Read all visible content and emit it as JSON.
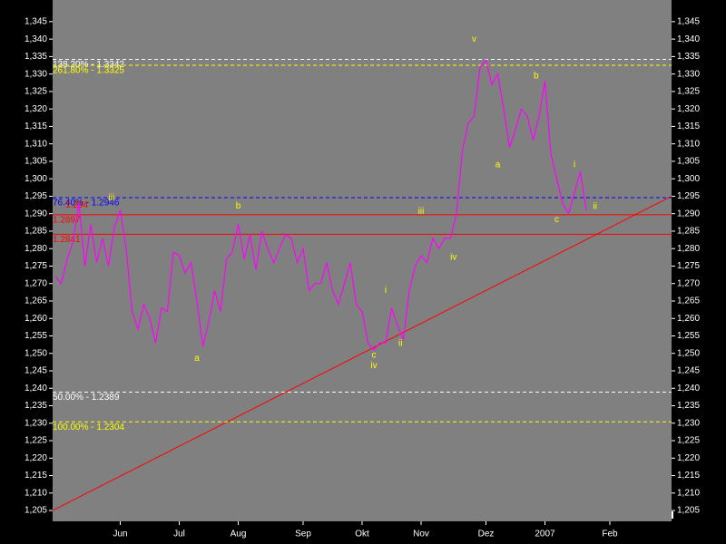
{
  "chart_data": {
    "type": "line",
    "color": "#ff00ff",
    "background": "#808080",
    "categories": [
      null,
      null,
      null,
      null,
      null,
      null,
      null,
      null,
      null,
      null,
      null,
      "Jun",
      null,
      null,
      null,
      null,
      null,
      null,
      null,
      null,
      null,
      "Jul",
      null,
      null,
      null,
      null,
      null,
      null,
      null,
      null,
      null,
      "Aug",
      null,
      null,
      null,
      null,
      null,
      null,
      null,
      null,
      null,
      null,
      "Sep",
      null,
      null,
      null,
      null,
      null,
      null,
      null,
      null,
      null,
      "Okt",
      null,
      null,
      null,
      null,
      null,
      null,
      null,
      null,
      null,
      "Nov",
      null,
      null,
      null,
      null,
      null,
      null,
      null,
      null,
      null,
      null,
      "Dez",
      null,
      null,
      null,
      null,
      null,
      null,
      null,
      null,
      null,
      "2007",
      null,
      null,
      null,
      null,
      null,
      null,
      null,
      null,
      null,
      null,
      "Feb",
      null,
      null,
      null,
      null,
      null,
      null,
      null,
      null,
      null,
      null
    ],
    "values": [
      1.272,
      1.27,
      1.277,
      1.282,
      1.293,
      1.275,
      1.287,
      1.276,
      1.283,
      1.275,
      1.286,
      1.291,
      1.28,
      1.262,
      1.257,
      1.264,
      1.26,
      1.253,
      1.263,
      1.262,
      1.279,
      1.278,
      1.273,
      1.276,
      1.265,
      1.252,
      1.259,
      1.268,
      1.262,
      1.277,
      1.279,
      1.287,
      1.277,
      1.284,
      1.274,
      1.285,
      1.28,
      1.276,
      1.28,
      1.284,
      1.283,
      1.276,
      1.28,
      1.268,
      1.27,
      1.27,
      1.276,
      1.268,
      1.264,
      1.27,
      1.276,
      1.264,
      1.262,
      1.253,
      1.251,
      1.253,
      1.253,
      1.263,
      1.258,
      1.254,
      1.268,
      1.275,
      1.278,
      1.276,
      1.283,
      1.28,
      1.283,
      1.283,
      1.29,
      1.308,
      1.316,
      1.318,
      1.332,
      1.334,
      1.327,
      1.33,
      1.32,
      1.309,
      1.314,
      1.32,
      1.318,
      1.311,
      1.318,
      1.328,
      1.307,
      1.3,
      1.293,
      1.29,
      1.296,
      1.302,
      1.291,
      null,
      null,
      null,
      null,
      null,
      null,
      null,
      null,
      null,
      null,
      null,
      null,
      null,
      null
    ],
    "ylim": [
      1.2019,
      1.3512
    ],
    "yticks": [
      {
        "value": 1.205,
        "label": "1,205"
      },
      {
        "value": 1.21,
        "label": "1,210"
      },
      {
        "value": 1.215,
        "label": "1,215"
      },
      {
        "value": 1.22,
        "label": "1,220"
      },
      {
        "value": 1.225,
        "label": "1,225"
      },
      {
        "value": 1.23,
        "label": "1,230"
      },
      {
        "value": 1.235,
        "label": "1,235"
      },
      {
        "value": 1.24,
        "label": "1,240"
      },
      {
        "value": 1.245,
        "label": "1,245"
      },
      {
        "value": 1.25,
        "label": "1,250"
      },
      {
        "value": 1.255,
        "label": "1,255"
      },
      {
        "value": 1.26,
        "label": "1,260"
      },
      {
        "value": 1.265,
        "label": "1,265"
      },
      {
        "value": 1.27,
        "label": "1,270"
      },
      {
        "value": 1.275,
        "label": "1,275"
      },
      {
        "value": 1.28,
        "label": "1,280"
      },
      {
        "value": 1.285,
        "label": "1,285"
      },
      {
        "value": 1.29,
        "label": "1,290"
      },
      {
        "value": 1.295,
        "label": "1,295"
      },
      {
        "value": 1.3,
        "label": "1,300"
      },
      {
        "value": 1.305,
        "label": "1,305"
      },
      {
        "value": 1.31,
        "label": "1,310"
      },
      {
        "value": 1.315,
        "label": "1,315"
      },
      {
        "value": 1.32,
        "label": "1,320"
      },
      {
        "value": 1.325,
        "label": "1,325"
      },
      {
        "value": 1.33,
        "label": "1,330"
      },
      {
        "value": 1.335,
        "label": "1,335"
      },
      {
        "value": 1.34,
        "label": "1,340"
      },
      {
        "value": 1.345,
        "label": "1,345"
      }
    ],
    "levels": [
      {
        "value": 1.3342,
        "label": "138.20% - 1.3342",
        "color": "#ffffff",
        "dashed": true
      },
      {
        "value": 1.3325,
        "label": "261.80% - 1.3325",
        "color": "#ffff00",
        "dashed": true
      },
      {
        "value": 1.2946,
        "label": "76.40% - 1.2946",
        "color": "#0000ff",
        "dashed": true
      },
      {
        "value": 1.294,
        "label": "1.294",
        "color": "#ff0000",
        "dashed": false,
        "line": false
      },
      {
        "value": 1.2897,
        "label": "1.2897",
        "color": "#ff0000",
        "dashed": false
      },
      {
        "value": 1.2841,
        "label": "1.2841",
        "color": "#ff0000",
        "dashed": false
      },
      {
        "value": 1.2389,
        "label": "50.00% - 1.2389",
        "color": "#ffffff",
        "dashed": true
      },
      {
        "value": 1.2304,
        "label": "100.00% - 1.2304",
        "color": "#ffff00",
        "dashed": true
      }
    ],
    "trendline": {
      "start": 1.205,
      "end": 1.295,
      "color": "#ff0000"
    },
    "annotations": [
      {
        "text": "iii",
        "index": 9.5,
        "value": 1.2945
      },
      {
        "text": "a",
        "index": 24,
        "value": 1.2486
      },
      {
        "text": "b",
        "index": 31,
        "value": 1.2922
      },
      {
        "text": "c",
        "index": 54,
        "value": 1.2494
      },
      {
        "text": "iv",
        "index": 54,
        "value": 1.2465
      },
      {
        "text": "i",
        "index": 56,
        "value": 1.268
      },
      {
        "text": "ii",
        "index": 58.5,
        "value": 1.2528
      },
      {
        "text": "iii",
        "index": 62,
        "value": 1.2906
      },
      {
        "text": "iv",
        "index": 67.5,
        "value": 1.2775
      },
      {
        "text": "v",
        "index": 71,
        "value": 1.34
      },
      {
        "text": "a",
        "index": 75,
        "value": 1.304
      },
      {
        "text": "b",
        "index": 81.5,
        "value": 1.3294
      },
      {
        "text": "c",
        "index": 85,
        "value": 1.2883
      },
      {
        "text": "i",
        "index": 88,
        "value": 1.304
      },
      {
        "text": "ii",
        "index": 91.5,
        "value": 1.292
      }
    ],
    "annotation_color": "#ffff00"
  }
}
